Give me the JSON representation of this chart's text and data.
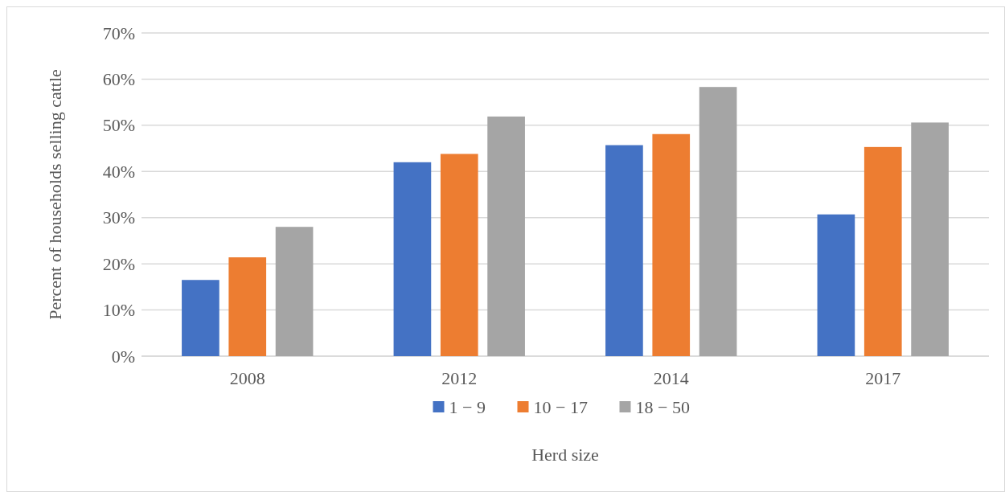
{
  "chart_data": {
    "type": "bar",
    "xlabel": "Herd size",
    "ylabel": "Percent of households selling cattle",
    "categories": [
      "2008",
      "2012",
      "2014",
      "2017"
    ],
    "series": [
      {
        "name": "1 − 9",
        "color": "#4472c4",
        "values": [
          16.5,
          42.0,
          45.7,
          30.7
        ]
      },
      {
        "name": "10 − 17",
        "color": "#ed7d31",
        "values": [
          21.4,
          43.8,
          48.1,
          45.3
        ]
      },
      {
        "name": "18 − 50",
        "color": "#a5a5a5",
        "values": [
          28.0,
          51.9,
          58.3,
          50.6
        ]
      }
    ],
    "ylim": [
      0,
      70
    ],
    "yticks": [
      {
        "value": 0,
        "label": "0%"
      },
      {
        "value": 10,
        "label": "10%"
      },
      {
        "value": 20,
        "label": "20%"
      },
      {
        "value": 30,
        "label": "30%"
      },
      {
        "value": 40,
        "label": "40%"
      },
      {
        "value": 50,
        "label": "50%"
      },
      {
        "value": 60,
        "label": "60%"
      },
      {
        "value": 70,
        "label": "70%"
      }
    ],
    "grid": "y",
    "legend": "bottom"
  }
}
